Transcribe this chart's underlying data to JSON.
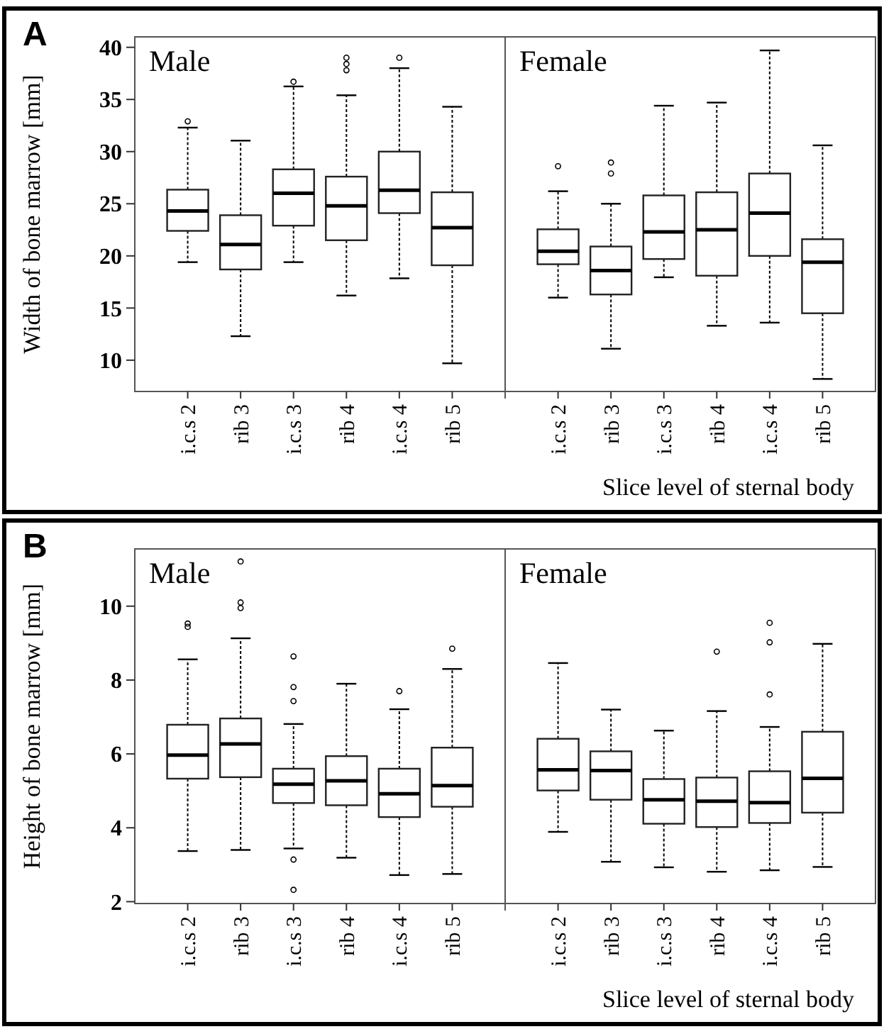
{
  "chart_data": [
    {
      "type": "box",
      "title": "A",
      "ylabel": "Width of bone marrow [mm]",
      "xlabel": "Slice level of sternal body",
      "annotations": [
        "Male",
        "Female"
      ],
      "categories": [
        "i.c.s 2",
        "rib 3",
        "i.c.s 3",
        "rib 4",
        "i.c.s 4",
        "rib 5",
        "i.c.s 2",
        "rib 3",
        "i.c.s 3",
        "rib 4",
        "i.c.s 4",
        "rib 5"
      ],
      "ylim": [
        7,
        41
      ],
      "yticks": [
        10,
        15,
        20,
        25,
        30,
        35,
        40
      ],
      "boxes": [
        {
          "low": 19.4,
          "q1": 22.4,
          "median": 24.3,
          "q3": 26.35,
          "high": 32.3,
          "outliers": [
            32.9
          ]
        },
        {
          "low": 12.3,
          "q1": 18.7,
          "median": 21.1,
          "q3": 23.9,
          "high": 31.05
        },
        {
          "low": 19.4,
          "q1": 22.9,
          "median": 26.0,
          "q3": 28.3,
          "high": 36.25,
          "outliers": [
            36.7
          ]
        },
        {
          "low": 16.2,
          "q1": 21.5,
          "median": 24.8,
          "q3": 27.6,
          "high": 35.4,
          "outliers": [
            37.8,
            38.4,
            39.0
          ]
        },
        {
          "low": 17.85,
          "q1": 24.1,
          "median": 26.3,
          "q3": 30.0,
          "high": 38.0,
          "outliers": [
            39.0
          ]
        },
        {
          "low": 9.7,
          "q1": 19.1,
          "median": 22.7,
          "q3": 26.1,
          "high": 34.3
        },
        {
          "low": 16.0,
          "q1": 19.2,
          "median": 20.45,
          "q3": 22.55,
          "high": 26.2,
          "outliers": [
            28.6
          ]
        },
        {
          "low": 11.1,
          "q1": 16.3,
          "median": 18.6,
          "q3": 20.9,
          "high": 25.0,
          "outliers": [
            27.9,
            28.95
          ]
        },
        {
          "low": 17.95,
          "q1": 19.7,
          "median": 22.3,
          "q3": 25.8,
          "high": 34.4
        },
        {
          "low": 13.3,
          "q1": 18.1,
          "median": 22.5,
          "q3": 26.1,
          "high": 34.7
        },
        {
          "low": 13.6,
          "q1": 20.0,
          "median": 24.1,
          "q3": 27.9,
          "high": 39.7
        },
        {
          "low": 8.2,
          "q1": 14.5,
          "median": 19.4,
          "q3": 21.6,
          "high": 30.6
        }
      ]
    },
    {
      "type": "box",
      "title": "B",
      "ylabel": "Height of bone marrow [mm]",
      "xlabel": "Slice level of sternal body",
      "annotations": [
        "Male",
        "Female"
      ],
      "categories": [
        "i.c.s 2",
        "rib 3",
        "i.c.s 3",
        "rib 4",
        "i.c.s 4",
        "rib 5",
        "i.c.s 2",
        "rib 3",
        "i.c.s 3",
        "rib 4",
        "i.c.s 4",
        "rib 5"
      ],
      "ylim": [
        1.95,
        11.55
      ],
      "yticks": [
        2,
        4,
        6,
        8,
        10
      ],
      "boxes": [
        {
          "low": 3.37,
          "q1": 5.33,
          "median": 5.97,
          "q3": 6.79,
          "high": 8.56,
          "outliers": [
            9.44,
            9.53
          ]
        },
        {
          "low": 3.4,
          "q1": 5.37,
          "median": 6.27,
          "q3": 6.96,
          "high": 9.13,
          "outliers": [
            9.95,
            10.1,
            11.21
          ]
        },
        {
          "low": 3.44,
          "q1": 4.67,
          "median": 5.18,
          "q3": 5.6,
          "high": 6.81,
          "outliers": [
            2.32,
            3.14,
            7.43,
            7.81,
            8.64
          ]
        },
        {
          "low": 3.19,
          "q1": 4.61,
          "median": 5.27,
          "q3": 5.94,
          "high": 7.9
        },
        {
          "low": 2.72,
          "q1": 4.29,
          "median": 4.92,
          "q3": 5.6,
          "high": 7.21,
          "outliers": [
            7.7
          ]
        },
        {
          "low": 2.75,
          "q1": 4.57,
          "median": 5.14,
          "q3": 6.17,
          "high": 8.3,
          "outliers": [
            8.85
          ]
        },
        {
          "low": 3.89,
          "q1": 5.01,
          "median": 5.57,
          "q3": 6.41,
          "high": 8.46
        },
        {
          "low": 3.08,
          "q1": 4.76,
          "median": 5.55,
          "q3": 6.07,
          "high": 7.2
        },
        {
          "low": 2.93,
          "q1": 4.11,
          "median": 4.76,
          "q3": 5.32,
          "high": 6.63
        },
        {
          "low": 2.81,
          "q1": 4.02,
          "median": 4.72,
          "q3": 5.36,
          "high": 7.16,
          "outliers": [
            8.77
          ]
        },
        {
          "low": 2.85,
          "q1": 4.13,
          "median": 4.68,
          "q3": 5.53,
          "high": 6.73,
          "outliers": [
            7.61,
            9.02,
            9.55
          ]
        },
        {
          "low": 2.94,
          "q1": 4.41,
          "median": 5.34,
          "q3": 6.6,
          "high": 8.98
        }
      ]
    }
  ]
}
